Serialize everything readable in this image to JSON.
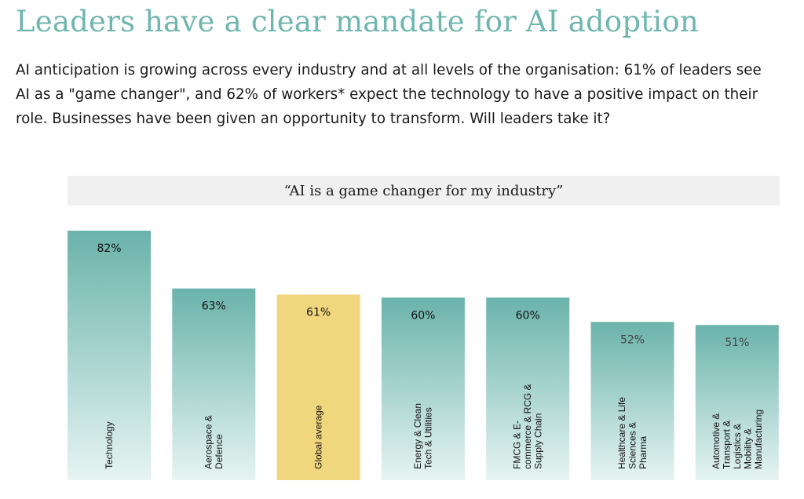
{
  "header": {
    "title": "Leaders have a clear mandate for AI adoption",
    "intro": "AI anticipation is growing across every industry and at all levels of the organisation: 61% of leaders see AI as a \"game changer\", and 62% of workers* expect the technology to have a positive impact on their role. Businesses have been given an opportunity to transform. Will leaders take it?"
  },
  "colors": {
    "title": "#6fb6ae",
    "bar_top": "#6ab3ab",
    "bar_bottom": "#e6f4f2",
    "highlight": "#f0d67c",
    "title_bar": "#f0f0f0"
  },
  "chart_data": {
    "type": "bar",
    "title": "“AI is a game changer for my industry”",
    "categories": [
      "Technology",
      "Aerospace & Defence",
      "Global average",
      "Energy & Clean Tech & Utilities",
      "FMCG & E-commerce & RCG & Supply Chain",
      "Healthcare & Life Sciences & Pharma",
      "Automotive & Transport & Logistics & Mobility & Manufacturing"
    ],
    "category_lines": [
      [
        "Technology"
      ],
      [
        "Aerospace &",
        "Defence"
      ],
      [
        "Global average"
      ],
      [
        "Energy & Clean",
        "Tech & Utilities"
      ],
      [
        "FMCG & E-",
        "commerce & RCG &",
        "Supply Chain"
      ],
      [
        "Healthcare & Life",
        "Sciences &",
        "Pharma"
      ],
      [
        "Automotive &",
        "Transport &",
        "Logistics &",
        "Mobility &",
        "Manufacturing"
      ]
    ],
    "values": [
      82,
      63,
      61,
      60,
      60,
      52,
      51
    ],
    "value_labels": [
      "82%",
      "63%",
      "61%",
      "60%",
      "60%",
      "52%",
      "51%"
    ],
    "highlight": "Global average",
    "ylim": [
      0,
      82
    ],
    "grid": false
  }
}
